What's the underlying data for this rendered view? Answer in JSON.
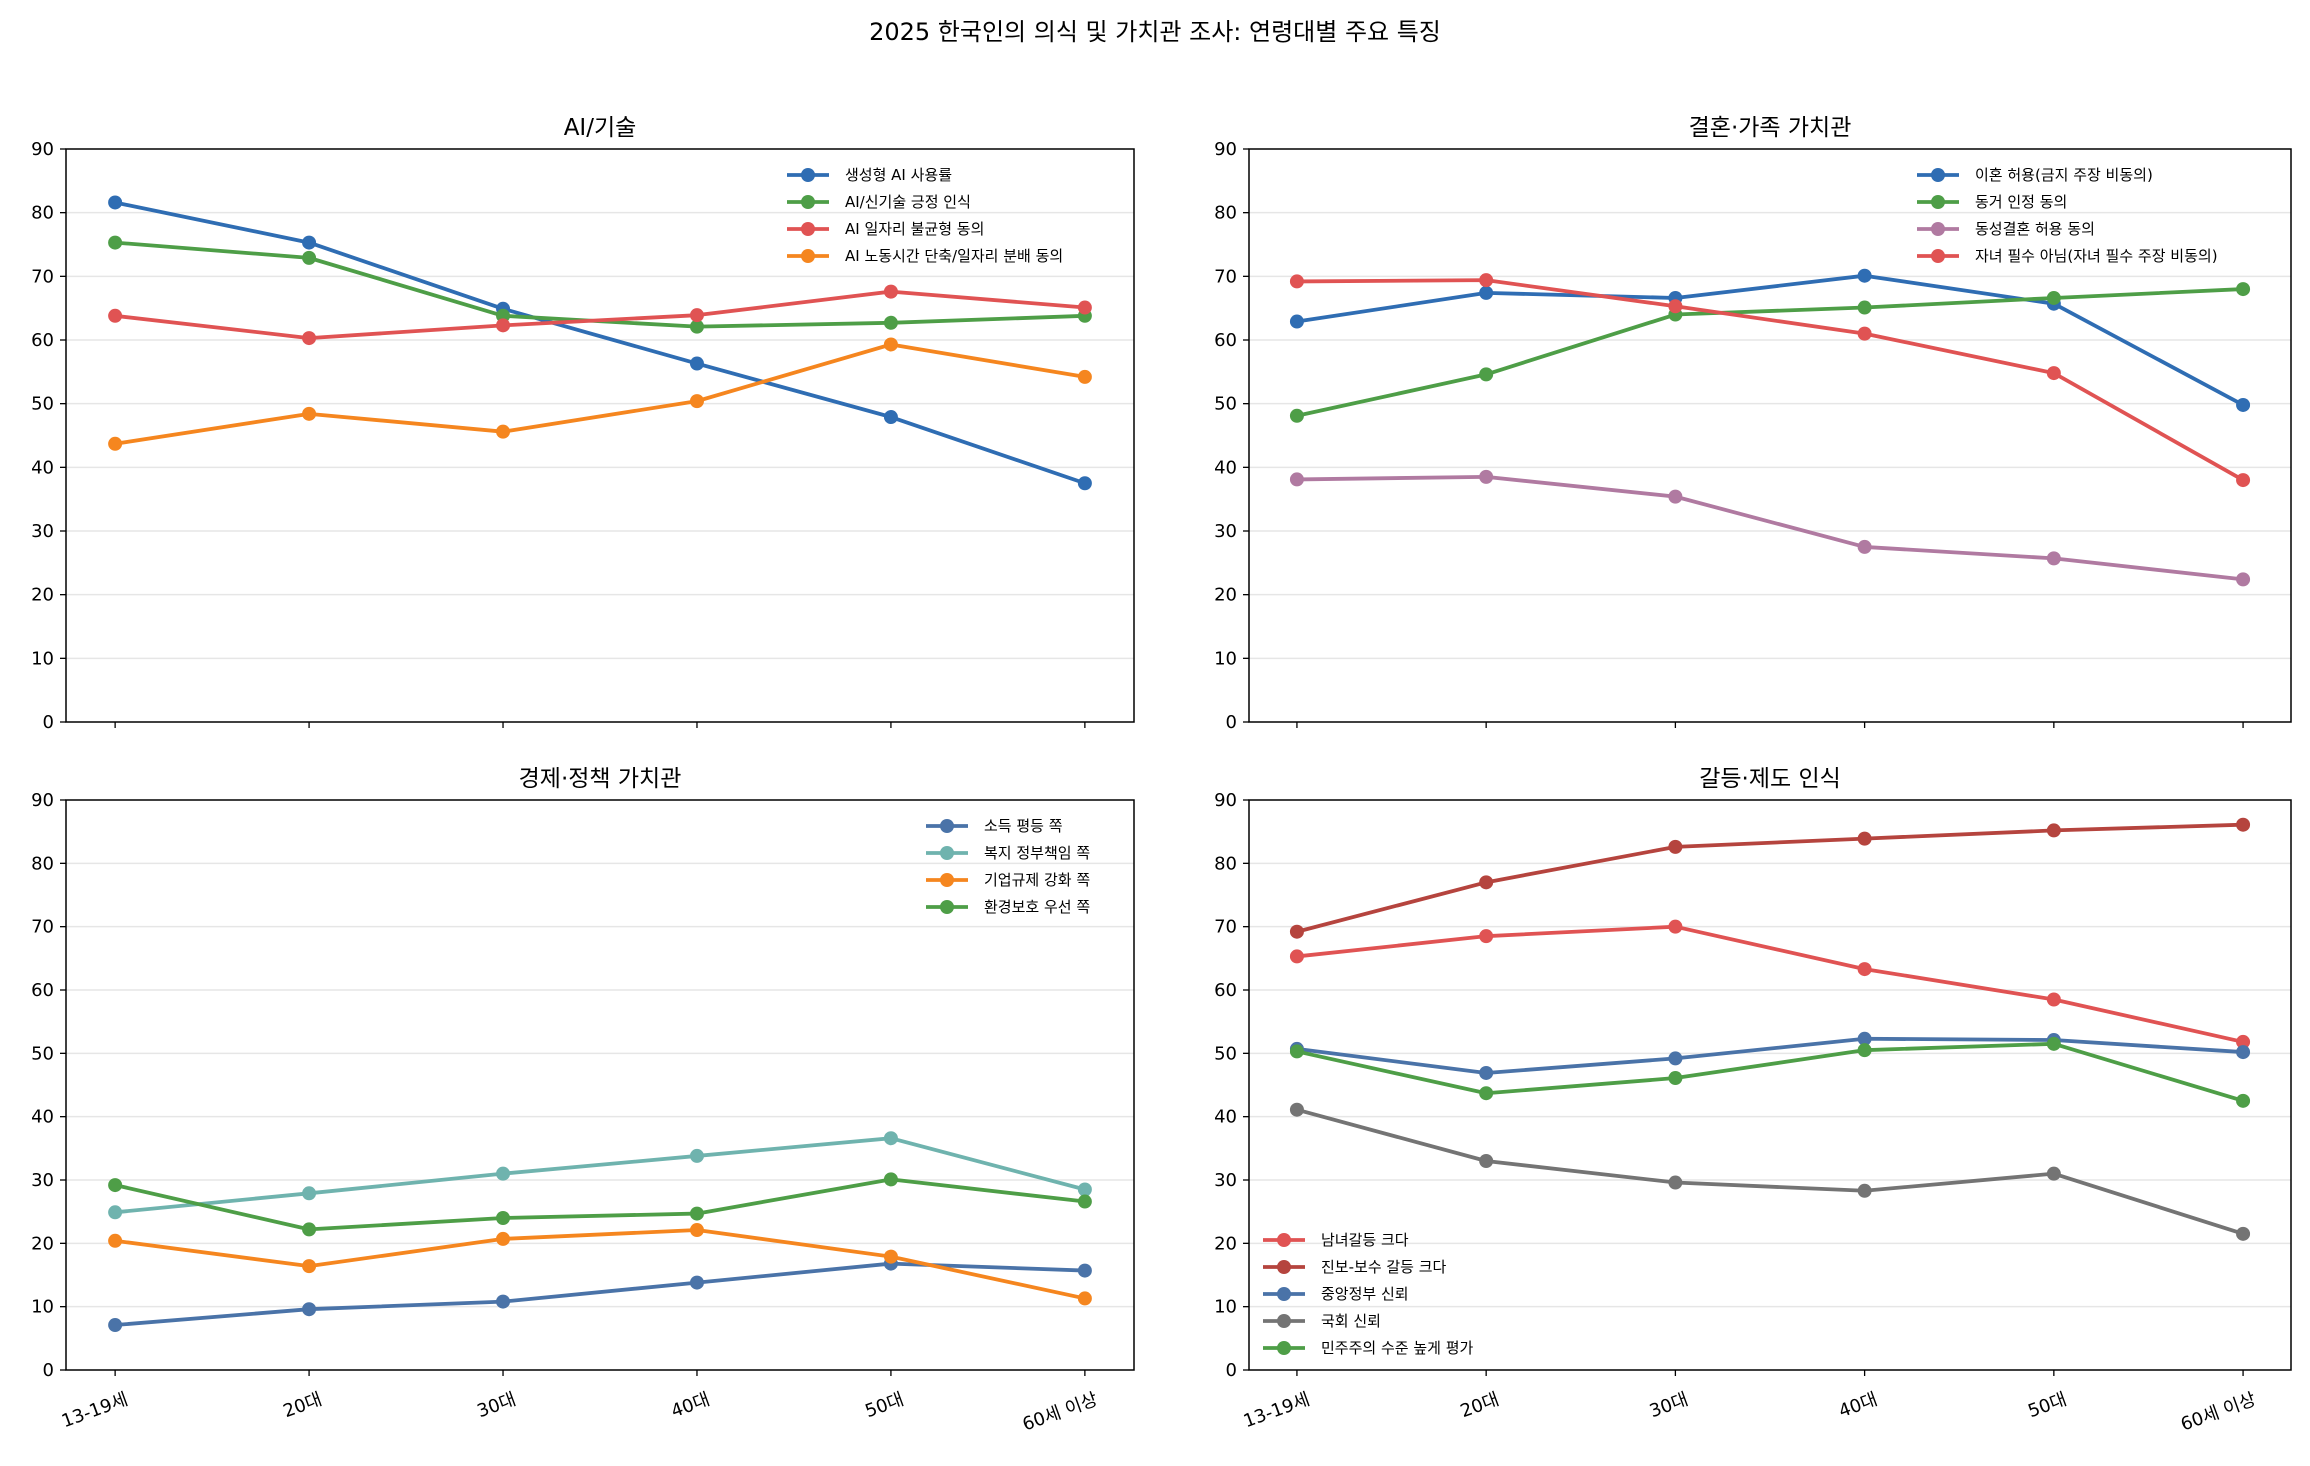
{
  "chart_data": {
    "suptitle": "2025 한국인의 의식 및 가치관 조사: 연령대별 주요 특징",
    "categories": [
      "13-19세",
      "20대",
      "30대",
      "40대",
      "50대",
      "60세 이상"
    ],
    "panels": [
      {
        "type": "line",
        "title": "AI/기술",
        "ylim": [
          0,
          90
        ],
        "yticks": [
          0,
          10,
          20,
          30,
          40,
          50,
          60,
          70,
          80,
          90
        ],
        "grid": "horizontal",
        "legend": "upper-right",
        "show_xlabels": false,
        "series": [
          {
            "name": "생성형 AI 사용률",
            "color": "#2f6db3",
            "values": [
              81.6,
              75.3,
              64.9,
              56.3,
              47.9,
              37.5
            ]
          },
          {
            "name": "AI/신기술 긍정 인식",
            "color": "#4e9e47",
            "values": [
              75.3,
              72.9,
              63.8,
              62.1,
              62.7,
              63.8
            ]
          },
          {
            "name": "AI 일자리 불균형 동의",
            "color": "#e05353",
            "values": [
              63.8,
              60.3,
              62.3,
              63.9,
              67.6,
              65.1
            ]
          },
          {
            "name": "AI 노동시간 단축/일자리 분배 동의",
            "color": "#f5861f",
            "values": [
              43.7,
              48.4,
              45.6,
              50.4,
              59.3,
              54.2
            ]
          }
        ]
      },
      {
        "type": "line",
        "title": "결혼·가족 가치관",
        "ylim": [
          0,
          90
        ],
        "yticks": [
          0,
          10,
          20,
          30,
          40,
          50,
          60,
          70,
          80,
          90
        ],
        "grid": "horizontal",
        "legend": "upper-right",
        "show_xlabels": false,
        "series": [
          {
            "name": "이혼 허용(금지 주장 비동의)",
            "color": "#2f6db3",
            "values": [
              62.9,
              67.4,
              66.6,
              70.1,
              65.7,
              49.8
            ]
          },
          {
            "name": "동거 인정 동의",
            "color": "#4e9e47",
            "values": [
              48.1,
              54.6,
              64.0,
              65.1,
              66.6,
              68.0
            ]
          },
          {
            "name": "동성결혼 허용 동의",
            "color": "#b07aa1",
            "values": [
              38.1,
              38.5,
              35.4,
              27.5,
              25.7,
              22.4
            ]
          },
          {
            "name": "자녀 필수 아님(자녀 필수 주장 비동의)",
            "color": "#e05353",
            "values": [
              69.2,
              69.4,
              65.3,
              61.0,
              54.8,
              38.0
            ]
          }
        ]
      },
      {
        "type": "line",
        "title": "경제·정책 가치관",
        "ylim": [
          0,
          90
        ],
        "yticks": [
          0,
          10,
          20,
          30,
          40,
          50,
          60,
          70,
          80,
          90
        ],
        "grid": "horizontal",
        "legend": "upper-right",
        "show_xlabels": true,
        "series": [
          {
            "name": "소득 평등 쪽",
            "color": "#4a73a8",
            "values": [
              7.1,
              9.6,
              10.8,
              13.8,
              16.8,
              15.7
            ]
          },
          {
            "name": "복지 정부책임 쪽",
            "color": "#6fb3ae",
            "values": [
              24.9,
              27.9,
              31.0,
              33.8,
              36.6,
              28.5
            ]
          },
          {
            "name": "기업규제 강화 쪽",
            "color": "#f5861f",
            "values": [
              20.4,
              16.4,
              20.7,
              22.1,
              17.9,
              11.3
            ]
          },
          {
            "name": "환경보호 우선 쪽",
            "color": "#4e9e47",
            "values": [
              29.2,
              22.2,
              24.0,
              24.7,
              30.1,
              26.6
            ]
          }
        ]
      },
      {
        "type": "line",
        "title": "갈등·제도 인식",
        "ylim": [
          0,
          90
        ],
        "yticks": [
          0,
          10,
          20,
          30,
          40,
          50,
          60,
          70,
          80,
          90
        ],
        "grid": "horizontal",
        "legend": "lower-left",
        "show_xlabels": true,
        "series": [
          {
            "name": "남녀갈등 크다",
            "color": "#e05353",
            "values": [
              65.3,
              68.5,
              70.0,
              63.3,
              58.5,
              51.8
            ]
          },
          {
            "name": "진보-보수 갈등 크다",
            "color": "#b5443e",
            "values": [
              69.2,
              77.0,
              82.6,
              83.9,
              85.2,
              86.1
            ]
          },
          {
            "name": "중앙정부 신뢰",
            "color": "#4a73a8",
            "values": [
              50.7,
              46.9,
              49.2,
              52.3,
              52.1,
              50.2
            ]
          },
          {
            "name": "국회 신뢰",
            "color": "#747474",
            "values": [
              41.1,
              33.0,
              29.6,
              28.3,
              31.0,
              21.5
            ]
          },
          {
            "name": "민주주의 수준 높게 평가",
            "color": "#4e9e47",
            "values": [
              50.3,
              43.7,
              46.1,
              50.5,
              51.5,
              42.5
            ]
          }
        ]
      }
    ]
  }
}
